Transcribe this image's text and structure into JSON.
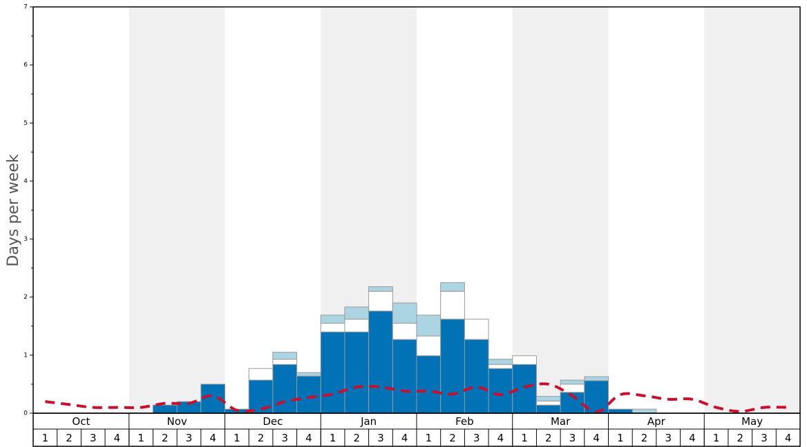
{
  "chart_data": {
    "type": "bar",
    "stacked": true,
    "y_label": "Days per week",
    "months": [
      "Oct",
      "Nov",
      "Dec",
      "Jan",
      "Feb",
      "Mar",
      "Apr",
      "May"
    ],
    "categories": [
      "1",
      "2",
      "3",
      "4",
      "1",
      "2",
      "3",
      "4",
      "1",
      "2",
      "3",
      "4",
      "1",
      "2",
      "3",
      "4",
      "1",
      "2",
      "3",
      "4",
      "1",
      "2",
      "3",
      "4",
      "1",
      "2",
      "3",
      "4",
      "1",
      "2",
      "3",
      "4"
    ],
    "series": [
      {
        "color": "#0072b5",
        "values": [
          0,
          0,
          0,
          0,
          0,
          0.14,
          0.2,
          0.5,
          0.07,
          0.57,
          0.84,
          0.64,
          1.4,
          1.4,
          1.76,
          1.27,
          0.99,
          1.62,
          1.27,
          0.77,
          0.84,
          0.14,
          0.36,
          0.56,
          0.07,
          0,
          0,
          0,
          0,
          0,
          0,
          0
        ]
      },
      {
        "color": "#ffffff",
        "values": [
          0,
          0,
          0,
          0,
          0,
          0,
          0,
          0,
          0,
          0.2,
          0.09,
          0,
          0.15,
          0.22,
          0.34,
          0.28,
          0.34,
          0.48,
          0.35,
          0.07,
          0.15,
          0.07,
          0.14,
          0,
          0,
          0,
          0,
          0,
          0,
          0,
          0,
          0
        ]
      },
      {
        "color": "#acd5e3",
        "values": [
          0,
          0,
          0,
          0,
          0,
          0,
          0,
          0,
          0,
          0,
          0.12,
          0.06,
          0.14,
          0.21,
          0.08,
          0.35,
          0.36,
          0.15,
          0,
          0.09,
          0,
          0.08,
          0.07,
          0.07,
          0,
          0.07,
          0,
          0,
          0,
          0,
          0,
          0
        ]
      }
    ],
    "line": {
      "color": "#c8102e",
      "dashed": true,
      "values": [
        0.2,
        0.15,
        0.1,
        0.1,
        0.1,
        0.17,
        0.17,
        0.3,
        0.05,
        0.07,
        0.2,
        0.27,
        0.33,
        0.45,
        0.45,
        0.38,
        0.38,
        0.33,
        0.45,
        0.32,
        0.45,
        0.5,
        0.3,
        0.02,
        0.32,
        0.3,
        0.24,
        0.24,
        0.1,
        0.03,
        0.1,
        0.1
      ]
    },
    "ylim": [
      0,
      7
    ],
    "yticks": [
      0,
      1,
      2,
      3,
      4,
      5,
      6,
      7
    ],
    "minor_yticks": [
      0.5,
      1.5,
      2.5,
      3.5,
      4.5,
      5.5,
      6.5
    ],
    "month_shading": "#f0f0f0"
  }
}
